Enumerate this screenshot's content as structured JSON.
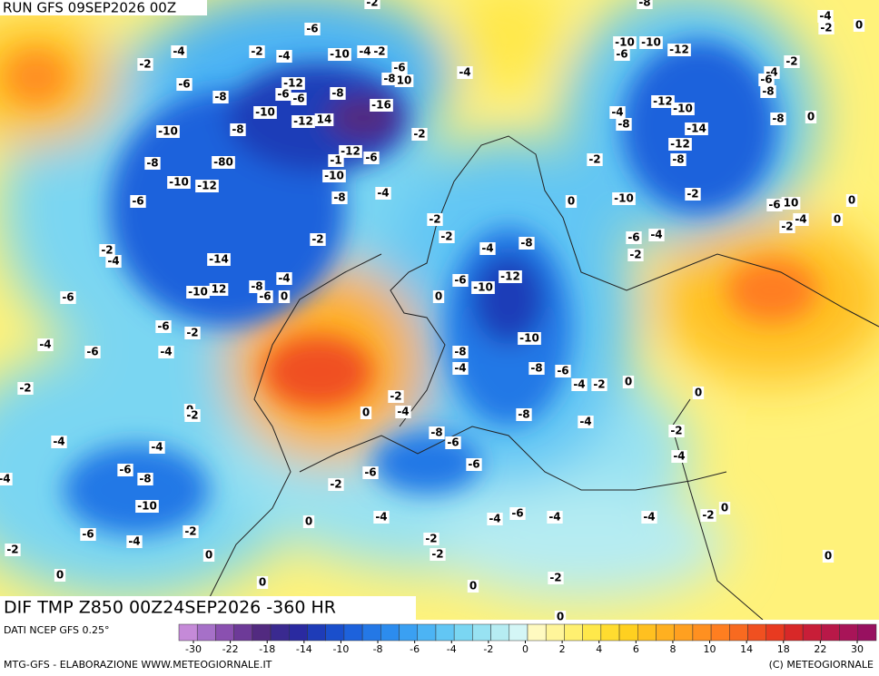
{
  "header": {
    "run": "RUN GFS 09SEP2026 00Z",
    "field": "DIF TMP Z850 00Z24SEP2026 -360 HR",
    "source": "DATI NCEP GFS 0.25°",
    "footer_left": "MTG-GFS - ELABORAZIONE WWW.METEOGIORNALE.IT",
    "footer_right": "(C) METEOGIORNALE"
  },
  "colorbar": {
    "colors": [
      "#c58ad8",
      "#a670c8",
      "#8a50b0",
      "#6d3a98",
      "#522a80",
      "#3a2a90",
      "#2a2aa0",
      "#1e3cb8",
      "#1a4fcc",
      "#1d62dc",
      "#2478e6",
      "#2c8cee",
      "#3aa0f2",
      "#4cb4f4",
      "#62c6f4",
      "#7ad6f2",
      "#98e2f2",
      "#b6ecf2",
      "#d4f6f6",
      "#fffac0",
      "#fff59a",
      "#fff070",
      "#ffe84a",
      "#ffdc30",
      "#ffd020",
      "#ffc020",
      "#ffb020",
      "#ffa020",
      "#ff9020",
      "#ff7e20",
      "#f86a20",
      "#f05020",
      "#e83a20",
      "#d82828",
      "#c81e38",
      "#b81848",
      "#a81458",
      "#981060"
    ],
    "ticks": [
      -30,
      -22,
      -18,
      -14,
      -10,
      -8,
      -6,
      -4,
      -2,
      0,
      2,
      4,
      6,
      8,
      10,
      14,
      18,
      22,
      30
    ]
  },
  "contour_labels": [
    -2,
    -4,
    -6,
    -8,
    -10,
    -8,
    -80,
    -6,
    -10,
    -12,
    -2,
    -4,
    -14,
    -10,
    12,
    -8,
    -4,
    -6,
    0,
    -6,
    -6,
    -2,
    -4,
    -6,
    -4,
    -2,
    0,
    -2,
    -4,
    -4,
    -6,
    -8,
    -4,
    -10,
    -6,
    -4,
    -2,
    -2,
    0,
    0,
    0,
    -2,
    -4,
    -6,
    -12,
    -6,
    -6,
    -8,
    -10,
    -8,
    -12,
    14,
    -16,
    -10,
    -4,
    -2,
    -6,
    -8,
    10,
    -2,
    -12,
    -1,
    -6,
    -10,
    -8,
    -4,
    -2,
    -4,
    -2,
    -2,
    -4,
    -8,
    -6,
    -10,
    -12,
    0,
    0,
    -2,
    -8,
    -4,
    -10,
    -8,
    -6,
    -4,
    -2,
    0,
    0,
    -2,
    -4,
    0,
    -8,
    -4,
    -8,
    -6,
    -6,
    -6,
    -2,
    -4,
    -4,
    -6,
    -4,
    -4,
    0,
    -2,
    -2,
    0,
    -2,
    -2,
    -4,
    -2,
    0,
    0,
    0,
    -10,
    -10,
    -6,
    -12,
    -8,
    -4,
    -8,
    -12,
    -10,
    -14,
    -12,
    -8,
    -10,
    -2,
    -6,
    -4,
    -2,
    -4,
    -2,
    -6,
    -8,
    -8,
    0,
    -6,
    10,
    -4,
    -2,
    0,
    0,
    -4,
    -2,
    0,
    -2
  ]
}
